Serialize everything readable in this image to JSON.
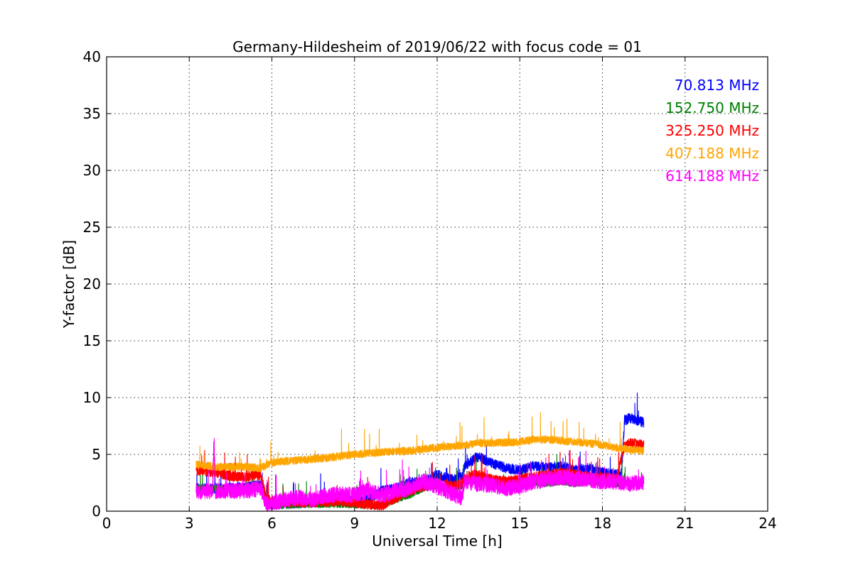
{
  "chart_data": {
    "type": "line",
    "title": "Germany-Hildesheim of 2019/06/22 with focus code = 01",
    "xlabel": "Universal Time [h]",
    "ylabel": "Y-factor [dB]",
    "xlim": [
      0,
      24
    ],
    "ylim": [
      0,
      40
    ],
    "xticks": [
      0,
      3,
      6,
      9,
      12,
      15,
      18,
      21,
      24
    ],
    "yticks": [
      0,
      5,
      10,
      15,
      20,
      25,
      30,
      35,
      40
    ],
    "grid": true,
    "legend_position": "top-right",
    "series": [
      {
        "name": "70.813 MHz",
        "color": "#0000ff",
        "points": [
          [
            3.25,
            2.0
          ],
          [
            4.0,
            2.0
          ],
          [
            5.0,
            2.1
          ],
          [
            5.6,
            2.3
          ],
          [
            5.8,
            0.6
          ],
          [
            6.5,
            0.7
          ],
          [
            7.5,
            0.8
          ],
          [
            8.5,
            1.0
          ],
          [
            9.5,
            1.0
          ],
          [
            10.0,
            1.8
          ],
          [
            10.5,
            2.0
          ],
          [
            11.0,
            2.5
          ],
          [
            11.5,
            2.6
          ],
          [
            12.0,
            3.2
          ],
          [
            12.5,
            2.8
          ],
          [
            12.9,
            3.0
          ],
          [
            13.0,
            4.0
          ],
          [
            13.5,
            4.8
          ],
          [
            14.0,
            4.2
          ],
          [
            14.5,
            3.8
          ],
          [
            15.0,
            3.6
          ],
          [
            15.5,
            4.0
          ],
          [
            16.0,
            3.8
          ],
          [
            16.5,
            4.0
          ],
          [
            17.0,
            3.6
          ],
          [
            17.5,
            3.8
          ],
          [
            18.0,
            3.4
          ],
          [
            18.5,
            3.2
          ],
          [
            18.7,
            3.4
          ],
          [
            18.8,
            8.0
          ],
          [
            19.0,
            8.2
          ],
          [
            19.5,
            7.8
          ]
        ]
      },
      {
        "name": "152.750 MHz",
        "color": "#008000",
        "points": [
          [
            3.25,
            2.0
          ],
          [
            4.0,
            2.0
          ],
          [
            5.0,
            2.0
          ],
          [
            5.6,
            2.2
          ],
          [
            5.8,
            0.5
          ],
          [
            6.5,
            0.5
          ],
          [
            7.5,
            0.6
          ],
          [
            8.5,
            0.6
          ],
          [
            9.5,
            0.5
          ],
          [
            10.0,
            0.5
          ],
          [
            10.5,
            1.0
          ],
          [
            11.0,
            1.4
          ],
          [
            11.5,
            2.0
          ],
          [
            12.0,
            2.2
          ],
          [
            12.5,
            2.0
          ],
          [
            12.9,
            2.2
          ],
          [
            13.0,
            2.6
          ],
          [
            13.5,
            2.8
          ],
          [
            14.0,
            2.4
          ],
          [
            14.5,
            2.2
          ],
          [
            15.0,
            2.3
          ],
          [
            15.5,
            2.5
          ],
          [
            16.0,
            2.4
          ],
          [
            16.5,
            2.6
          ],
          [
            17.0,
            2.4
          ],
          [
            17.5,
            2.6
          ],
          [
            18.0,
            2.5
          ],
          [
            18.5,
            2.4
          ],
          [
            19.0,
            2.5
          ],
          [
            19.5,
            2.6
          ]
        ]
      },
      {
        "name": "325.250 MHz",
        "color": "#ff0000",
        "points": [
          [
            3.25,
            3.6
          ],
          [
            4.0,
            3.4
          ],
          [
            4.5,
            3.1
          ],
          [
            5.0,
            3.0
          ],
          [
            5.6,
            3.2
          ],
          [
            5.8,
            1.0
          ],
          [
            6.5,
            0.8
          ],
          [
            7.5,
            0.8
          ],
          [
            8.5,
            0.9
          ],
          [
            9.5,
            0.6
          ],
          [
            10.0,
            0.5
          ],
          [
            10.5,
            1.2
          ],
          [
            11.0,
            1.8
          ],
          [
            11.5,
            2.2
          ],
          [
            12.0,
            2.4
          ],
          [
            12.5,
            2.2
          ],
          [
            12.9,
            2.4
          ],
          [
            13.0,
            3.0
          ],
          [
            13.5,
            3.2
          ],
          [
            14.0,
            2.8
          ],
          [
            14.5,
            2.6
          ],
          [
            15.0,
            2.8
          ],
          [
            15.5,
            3.0
          ],
          [
            16.0,
            3.2
          ],
          [
            16.5,
            3.4
          ],
          [
            17.0,
            3.2
          ],
          [
            17.5,
            3.0
          ],
          [
            18.0,
            3.0
          ],
          [
            18.5,
            2.8
          ],
          [
            18.8,
            5.8
          ],
          [
            19.0,
            6.0
          ],
          [
            19.5,
            5.8
          ]
        ]
      },
      {
        "name": "407.188 MHz",
        "color": "#ffa500",
        "points": [
          [
            3.25,
            4.1
          ],
          [
            4.0,
            3.9
          ],
          [
            5.0,
            3.9
          ],
          [
            5.6,
            3.8
          ],
          [
            6.0,
            4.3
          ],
          [
            7.0,
            4.5
          ],
          [
            8.0,
            4.7
          ],
          [
            9.0,
            5.0
          ],
          [
            10.0,
            5.2
          ],
          [
            11.0,
            5.3
          ],
          [
            12.0,
            5.6
          ],
          [
            13.0,
            5.8
          ],
          [
            13.5,
            6.0
          ],
          [
            14.0,
            6.0
          ],
          [
            15.0,
            6.1
          ],
          [
            15.5,
            6.3
          ],
          [
            16.0,
            6.3
          ],
          [
            17.0,
            6.1
          ],
          [
            17.5,
            6.0
          ],
          [
            18.0,
            5.8
          ],
          [
            18.5,
            5.6
          ],
          [
            19.0,
            5.4
          ],
          [
            19.5,
            5.3
          ]
        ]
      },
      {
        "name": "614.188 MHz",
        "color": "#ff00ff",
        "points": [
          [
            3.25,
            1.7
          ],
          [
            3.85,
            1.8
          ],
          [
            3.9,
            6.5
          ],
          [
            3.95,
            1.8
          ],
          [
            4.5,
            1.8
          ],
          [
            5.0,
            1.8
          ],
          [
            5.6,
            2.0
          ],
          [
            5.8,
            0.6
          ],
          [
            6.5,
            1.0
          ],
          [
            7.0,
            1.2
          ],
          [
            7.5,
            1.0
          ],
          [
            8.0,
            1.4
          ],
          [
            8.5,
            1.5
          ],
          [
            9.0,
            1.4
          ],
          [
            9.5,
            1.8
          ],
          [
            10.0,
            1.4
          ],
          [
            10.5,
            1.8
          ],
          [
            11.0,
            2.0
          ],
          [
            11.5,
            2.6
          ],
          [
            12.0,
            2.2
          ],
          [
            12.5,
            1.6
          ],
          [
            12.9,
            1.2
          ],
          [
            13.0,
            2.6
          ],
          [
            13.5,
            2.4
          ],
          [
            14.0,
            2.3
          ],
          [
            14.5,
            2.0
          ],
          [
            15.0,
            2.2
          ],
          [
            15.5,
            2.6
          ],
          [
            16.0,
            2.8
          ],
          [
            16.5,
            3.0
          ],
          [
            17.0,
            2.8
          ],
          [
            17.5,
            2.8
          ],
          [
            18.0,
            2.6
          ],
          [
            18.5,
            2.6
          ],
          [
            19.0,
            2.4
          ],
          [
            19.5,
            2.6
          ]
        ]
      }
    ]
  }
}
